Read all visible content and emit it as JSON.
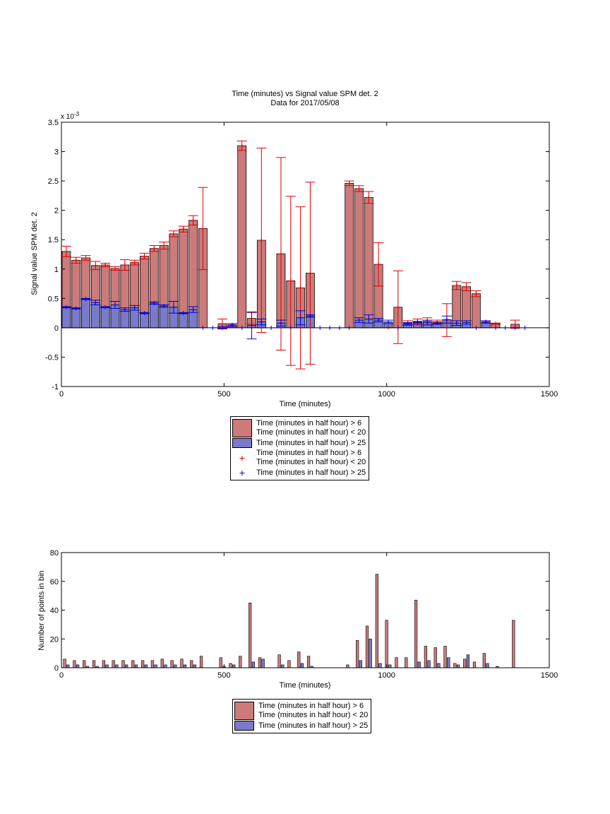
{
  "chart_data": [
    {
      "type": "bar",
      "title": "Time (minutes) vs Signal value SPM det. 2",
      "subtitle": "Data for 2017/05/08",
      "xlabel": "Time (minutes)",
      "ylabel": "Signal value SPM det. 2",
      "exponent_label": "x 10",
      "exponent_power": "-3",
      "xlim": [
        0,
        1500
      ],
      "ylim": [
        -1,
        3.5
      ],
      "xticks": [
        "0",
        "500",
        "1000",
        "1500"
      ],
      "yticks": [
        "-1",
        "-0.5",
        "0",
        "0.5",
        "1",
        "1.5",
        "2",
        "2.5",
        "3",
        "3.5"
      ],
      "bar_width": 26,
      "colors": {
        "series1": "#cc7a7a",
        "series2": "#7a7acc",
        "err1": "#e00000",
        "err2": "#0000e0"
      },
      "legend_position": "below",
      "series": [
        {
          "name": "Time (minutes in half hour) > 6\nTime (minutes in half hour) < 20",
          "points": [
            {
              "x": 15,
              "y": 1.3,
              "e": 0.09
            },
            {
              "x": 45,
              "y": 1.15,
              "e": 0.05
            },
            {
              "x": 75,
              "y": 1.19,
              "e": 0.04
            },
            {
              "x": 105,
              "y": 1.06,
              "e": 0.07
            },
            {
              "x": 135,
              "y": 1.07,
              "e": 0.03
            },
            {
              "x": 165,
              "y": 1.01,
              "e": 0.03
            },
            {
              "x": 195,
              "y": 1.07,
              "e": 0.09
            },
            {
              "x": 225,
              "y": 1.11,
              "e": 0.04
            },
            {
              "x": 255,
              "y": 1.22,
              "e": 0.05
            },
            {
              "x": 285,
              "y": 1.35,
              "e": 0.05
            },
            {
              "x": 315,
              "y": 1.4,
              "e": 0.06
            },
            {
              "x": 345,
              "y": 1.6,
              "e": 0.05
            },
            {
              "x": 375,
              "y": 1.68,
              "e": 0.05
            },
            {
              "x": 405,
              "y": 1.83,
              "e": 0.08
            },
            {
              "x": 435,
              "y": 1.69,
              "e": 0.7
            },
            {
              "x": 495,
              "y": 0.07,
              "e": 0.08
            },
            {
              "x": 525,
              "y": 0.04,
              "e": 0.03
            },
            {
              "x": 555,
              "y": 3.1,
              "e": 0.08
            },
            {
              "x": 585,
              "y": 0.16,
              "e": 0.1
            },
            {
              "x": 615,
              "y": 1.49,
              "e": 1.57
            },
            {
              "x": 675,
              "y": 1.26,
              "e": 1.64
            },
            {
              "x": 705,
              "y": 0.8,
              "e": 1.44
            },
            {
              "x": 735,
              "y": 0.68,
              "e": 1.38
            },
            {
              "x": 765,
              "y": 0.93,
              "e": 1.55
            },
            {
              "x": 885,
              "y": 2.46,
              "e": 0.04
            },
            {
              "x": 915,
              "y": 2.37,
              "e": 0.05
            },
            {
              "x": 945,
              "y": 2.22,
              "e": 0.1
            },
            {
              "x": 975,
              "y": 1.08,
              "e": 0.37
            },
            {
              "x": 1005,
              "y": 0.01,
              "e": 0.0
            },
            {
              "x": 1035,
              "y": 0.35,
              "e": 0.62
            },
            {
              "x": 1065,
              "y": 0.08,
              "e": 0.04
            },
            {
              "x": 1095,
              "y": 0.1,
              "e": 0.05
            },
            {
              "x": 1125,
              "y": 0.11,
              "e": 0.06
            },
            {
              "x": 1155,
              "y": 0.1,
              "e": 0.03
            },
            {
              "x": 1185,
              "y": 0.13,
              "e": 0.28
            },
            {
              "x": 1215,
              "y": 0.72,
              "e": 0.07
            },
            {
              "x": 1245,
              "y": 0.7,
              "e": 0.07
            },
            {
              "x": 1275,
              "y": 0.58,
              "e": 0.05
            },
            {
              "x": 1305,
              "y": 0.1,
              "e": 0.02
            },
            {
              "x": 1335,
              "y": 0.07,
              "e": 0.01
            },
            {
              "x": 1395,
              "y": 0.06,
              "e": 0.07
            }
          ]
        },
        {
          "name": "Time (minutes in half hour) > 25",
          "points": [
            {
              "x": 15,
              "y": 0.35,
              "e": 0.01
            },
            {
              "x": 45,
              "y": 0.33,
              "e": 0.01
            },
            {
              "x": 75,
              "y": 0.49,
              "e": 0.01
            },
            {
              "x": 105,
              "y": 0.43,
              "e": 0.04
            },
            {
              "x": 135,
              "y": 0.35,
              "e": 0.01
            },
            {
              "x": 165,
              "y": 0.39,
              "e": 0.06
            },
            {
              "x": 195,
              "y": 0.31,
              "e": 0.03
            },
            {
              "x": 225,
              "y": 0.34,
              "e": 0.04
            },
            {
              "x": 255,
              "y": 0.25,
              "e": 0.01
            },
            {
              "x": 285,
              "y": 0.42,
              "e": 0.02
            },
            {
              "x": 315,
              "y": 0.37,
              "e": 0.02
            },
            {
              "x": 345,
              "y": 0.35,
              "e": 0.1
            },
            {
              "x": 375,
              "y": 0.25,
              "e": 0.01
            },
            {
              "x": 405,
              "y": 0.31,
              "e": 0.05
            },
            {
              "x": 435,
              "y": 0.0,
              "e": 0.0
            },
            {
              "x": 465,
              "y": 0.0,
              "e": 0.0
            },
            {
              "x": 495,
              "y": 0.0,
              "e": 0.02
            },
            {
              "x": 525,
              "y": 0.05,
              "e": 0.02
            },
            {
              "x": 555,
              "y": 0.0,
              "e": 0.0
            },
            {
              "x": 585,
              "y": 0.04,
              "e": 0.23
            },
            {
              "x": 615,
              "y": 0.1,
              "e": 0.05
            },
            {
              "x": 645,
              "y": 0.0,
              "e": 0.0
            },
            {
              "x": 675,
              "y": 0.08,
              "e": 0.05
            },
            {
              "x": 705,
              "y": 0.0,
              "e": 0.0
            },
            {
              "x": 735,
              "y": 0.17,
              "e": 0.12
            },
            {
              "x": 765,
              "y": 0.2,
              "e": 0.02
            },
            {
              "x": 795,
              "y": 0.0,
              "e": 0.0
            },
            {
              "x": 825,
              "y": 0.0,
              "e": 0.0
            },
            {
              "x": 855,
              "y": 0.0,
              "e": 0.0
            },
            {
              "x": 885,
              "y": 0.0,
              "e": 0.0
            },
            {
              "x": 915,
              "y": 0.13,
              "e": 0.04
            },
            {
              "x": 945,
              "y": 0.15,
              "e": 0.07
            },
            {
              "x": 975,
              "y": 0.13,
              "e": 0.03
            },
            {
              "x": 1005,
              "y": 0.1,
              "e": 0.03
            },
            {
              "x": 1035,
              "y": 0.0,
              "e": 0.0
            },
            {
              "x": 1065,
              "y": 0.07,
              "e": 0.02
            },
            {
              "x": 1095,
              "y": 0.09,
              "e": 0.02
            },
            {
              "x": 1125,
              "y": 0.09,
              "e": 0.04
            },
            {
              "x": 1155,
              "y": 0.08,
              "e": 0.02
            },
            {
              "x": 1185,
              "y": 0.14,
              "e": 0.06
            },
            {
              "x": 1215,
              "y": 0.08,
              "e": 0.04
            },
            {
              "x": 1245,
              "y": 0.09,
              "e": 0.03
            },
            {
              "x": 1275,
              "y": 0.0,
              "e": 0.0
            },
            {
              "x": 1305,
              "y": 0.1,
              "e": 0.02
            },
            {
              "x": 1335,
              "y": 0.0,
              "e": 0.0
            },
            {
              "x": 1365,
              "y": 0.0,
              "e": 0.0
            },
            {
              "x": 1395,
              "y": 0.0,
              "e": 0.0
            },
            {
              "x": 1425,
              "y": 0.0,
              "e": 0.0
            }
          ]
        }
      ],
      "legend": [
        {
          "kind": "patch",
          "color": "#cc7a7a",
          "lines": [
            "Time (minutes in half hour) > 6",
            "Time (minutes in half hour) < 20"
          ]
        },
        {
          "kind": "patch",
          "color": "#7a7acc",
          "lines": [
            "Time (minutes in half hour) > 25"
          ]
        },
        {
          "kind": "marker",
          "color": "#e00000",
          "lines": [
            "Time (minutes in half hour) > 6",
            "Time (minutes in half hour) < 20"
          ]
        },
        {
          "kind": "marker",
          "color": "#0000e0",
          "lines": [
            "Time (minutes in half hour) > 25"
          ]
        }
      ]
    },
    {
      "type": "bar",
      "xlabel": "Time (minutes)",
      "ylabel": "Number of points in bin",
      "xlim": [
        0,
        1500
      ],
      "ylim": [
        0,
        80
      ],
      "xticks": [
        "0",
        "500",
        "1000",
        "1500"
      ],
      "yticks": [
        "0",
        "20",
        "40",
        "60",
        "80"
      ],
      "bar_width": 8,
      "colors": {
        "series1": "#cc7a7a",
        "series2": "#7a7acc"
      },
      "legend_position": "below",
      "x": [
        15,
        45,
        75,
        105,
        135,
        165,
        195,
        225,
        255,
        285,
        315,
        345,
        375,
        405,
        435,
        465,
        495,
        525,
        555,
        585,
        615,
        645,
        675,
        705,
        735,
        765,
        795,
        825,
        855,
        885,
        915,
        945,
        975,
        1005,
        1035,
        1065,
        1095,
        1125,
        1155,
        1185,
        1215,
        1245,
        1275,
        1305,
        1335,
        1365,
        1395,
        1425
      ],
      "series": [
        {
          "name": "Time (minutes in half hour) > 6\nTime (minutes in half hour) < 20",
          "values": [
            6,
            5,
            5,
            5,
            5,
            5,
            5,
            5,
            5,
            5,
            6,
            5,
            6,
            5,
            8,
            0,
            7,
            3,
            8,
            45,
            7,
            0,
            9,
            5,
            11,
            8,
            0,
            0,
            0,
            2,
            19,
            29,
            65,
            33,
            7,
            7,
            47,
            15,
            14,
            15,
            3,
            6,
            4,
            10,
            0,
            0,
            33,
            0
          ]
        },
        {
          "name": "Time (minutes in half hour) > 25",
          "values": [
            2,
            2,
            1,
            1,
            2,
            2,
            2,
            2,
            2,
            2,
            2,
            2,
            2,
            2,
            0,
            0,
            1,
            2,
            0,
            4,
            6,
            0,
            2,
            0,
            3,
            1,
            0,
            0,
            0,
            0,
            5,
            20,
            3,
            2,
            0,
            0,
            4,
            5,
            3,
            7,
            2,
            9,
            0,
            3,
            1,
            0,
            0,
            0
          ]
        }
      ],
      "legend": [
        {
          "kind": "patch",
          "color": "#cc7a7a",
          "lines": [
            "Time (minutes in half hour) > 6",
            "Time (minutes in half hour) < 20"
          ]
        },
        {
          "kind": "patch",
          "color": "#7a7acc",
          "lines": [
            "Time (minutes in half hour) > 25"
          ]
        }
      ]
    }
  ]
}
